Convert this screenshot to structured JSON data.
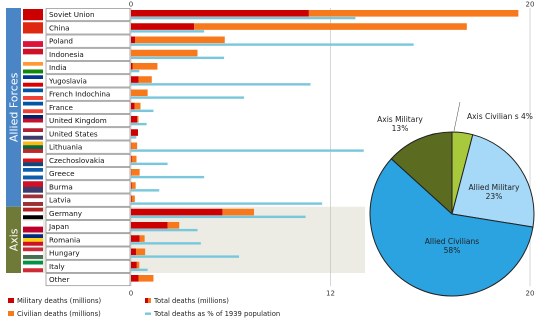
{
  "chart_data": {
    "type": "bar",
    "groups": [
      {
        "label": "Allied Forces",
        "count": 15,
        "color": "#4a86c5"
      },
      {
        "label": "Axis",
        "count": 5,
        "color": "#6f7a38"
      }
    ],
    "categories": [
      "Soviet Union",
      "China",
      "Poland",
      "Indonesia",
      "India",
      "Yugoslavia",
      "French Indochina",
      "France",
      "United Kingdom",
      "United States",
      "Lithuania",
      "Czechoslovakia",
      "Greece",
      "Burma",
      "Latvia",
      "Germany",
      "Japan",
      "Romania",
      "Hungary",
      "Italy",
      "Other"
    ],
    "flags": [
      [
        "#cc0000"
      ],
      [
        "#de2910"
      ],
      [
        "#ffffff",
        "#dc143c"
      ],
      [
        "#ce1126",
        "#ffffff"
      ],
      [
        "#ff9933",
        "#ffffff",
        "#138808"
      ],
      [
        "#003893",
        "#ffffff",
        "#de0000"
      ],
      [
        "#0055a4",
        "#ffffff",
        "#ef4135"
      ],
      [
        "#0055a4",
        "#ffffff",
        "#ef4135"
      ],
      [
        "#012169",
        "#c8102e",
        "#ffffff"
      ],
      [
        "#b22234",
        "#ffffff",
        "#3c3b6e"
      ],
      [
        "#fdb913",
        "#006a44",
        "#c1272d"
      ],
      [
        "#ffffff",
        "#d7141a",
        "#11457e"
      ],
      [
        "#0d5eaf",
        "#ffffff",
        "#0d5eaf"
      ],
      [
        "#ce1126",
        "#3c3b6e"
      ],
      [
        "#9e3039",
        "#ffffff",
        "#9e3039"
      ],
      [
        "#b22222",
        "#ffffff",
        "#000000"
      ],
      [
        "#ffffff",
        "#bc002d"
      ],
      [
        "#002b7f",
        "#fcd116",
        "#ce1126"
      ],
      [
        "#ce2939",
        "#ffffff",
        "#477050"
      ],
      [
        "#009246",
        "#ffffff",
        "#ce2b37"
      ],
      [
        "#ffffff"
      ]
    ],
    "series": [
      {
        "name": "Military deaths (millions)",
        "color": "#cc0000",
        "values": [
          10.7,
          3.8,
          0.24,
          0,
          0.09,
          0.45,
          0,
          0.22,
          0.38,
          0.42,
          0.02,
          0.03,
          0.02,
          0.03,
          0.03,
          5.5,
          2.2,
          0.52,
          0.3,
          0.35,
          0.45
        ]
      },
      {
        "name": "Civilian deaths (millions)",
        "color": "#f7791c",
        "values": [
          12.6,
          16.4,
          5.4,
          4.0,
          1.5,
          0.8,
          1.0,
          0.35,
          0.07,
          0.0,
          0.35,
          0.3,
          0.5,
          0.25,
          0.2,
          1.9,
          0.7,
          0.3,
          0.55,
          0.15,
          0.9
        ]
      },
      {
        "name": "Total deaths as % of 1939 population",
        "color": "#78c7dc",
        "values": [
          13.5,
          4.4,
          17.0,
          5.6,
          0.5,
          10.8,
          6.8,
          1.35,
          0.94,
          0.32,
          14.0,
          2.2,
          4.4,
          1.7,
          11.5,
          10.5,
          4.0,
          4.2,
          6.5,
          1.0,
          0.0
        ]
      }
    ],
    "legend": [
      {
        "label": "Military deaths (millions)",
        "color": "#cc0000"
      },
      {
        "label": "Total deaths (millions)",
        "color": "#cc0000",
        "color2": "#f7791c"
      },
      {
        "label": "Civilian deaths (millions)",
        "color": "#f7791c"
      },
      {
        "label": "Total deaths as % of 1939 population",
        "color": "#78c7dc"
      }
    ],
    "xticks_top": [
      "0",
      "",
      "20"
    ],
    "xticks_bottom": [
      "0",
      "12",
      "20"
    ],
    "xlim": [
      0,
      24
    ],
    "pie": [
      {
        "label": "Axis Military",
        "pct": "13%",
        "value": 13,
        "color": "#5b6b1f"
      },
      {
        "label": "Axis Civilian s",
        "pct": "4%",
        "value": 4,
        "color": "#a9c93d"
      },
      {
        "label": "Allied Military",
        "pct": "23%",
        "value": 23,
        "color": "#a6d9f7"
      },
      {
        "label": "Allied Civilians",
        "pct": "58%",
        "value": 58,
        "color": "#2aa3e0"
      }
    ]
  }
}
